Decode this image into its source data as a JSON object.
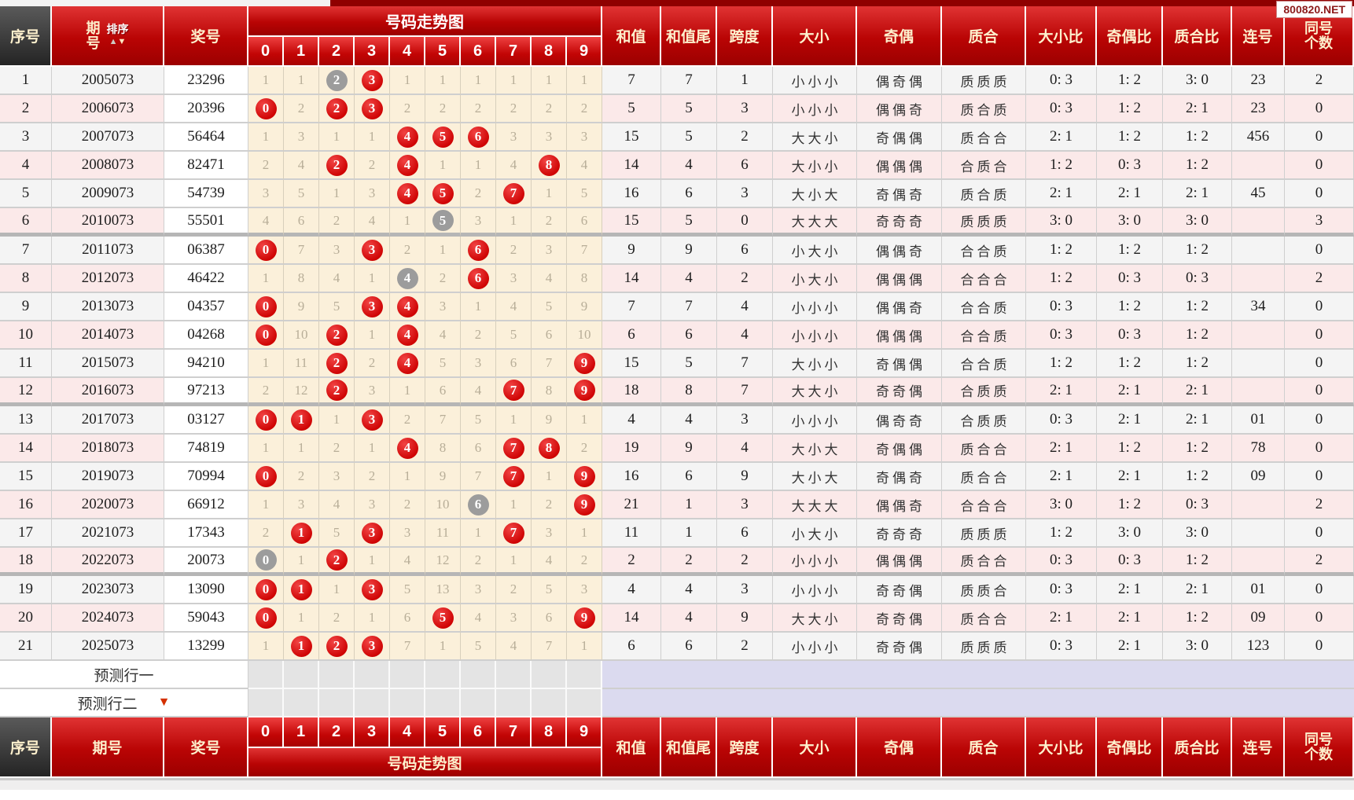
{
  "watermark": "800820.NET",
  "header": {
    "serial": "序号",
    "period": "期号",
    "period_char1": "期",
    "period_char2": "号",
    "sort_label": "排序",
    "sort_up_icon": "▲",
    "sort_down_icon": "▼",
    "prize": "奖号",
    "trend_title": "号码走势图",
    "digits": [
      "0",
      "1",
      "2",
      "3",
      "4",
      "5",
      "6",
      "7",
      "8",
      "9"
    ],
    "cols": [
      "和值",
      "和值尾",
      "跨度",
      "大小",
      "奇偶",
      "质合",
      "大小比",
      "奇偶比",
      "质合比",
      "连号"
    ],
    "same_line1": "同号",
    "same_line2": "个数"
  },
  "colors": {
    "header_red": "#b90404",
    "header_dark": "#2e2e2e",
    "stripe_gray": "#f4f4f4",
    "stripe_pink": "#fbe9e9",
    "trend_bg": "#fbf0da",
    "hit_red": "#cf0404",
    "hit_gray": "#9c9c9c",
    "prediction_bg": "#dbdaef"
  },
  "chart_data": {
    "type": "table",
    "title": "号码走势图",
    "columns": [
      "序号",
      "期号",
      "奖号",
      "0",
      "1",
      "2",
      "3",
      "4",
      "5",
      "6",
      "7",
      "8",
      "9",
      "和值",
      "和值尾",
      "跨度",
      "大小",
      "奇偶",
      "质合",
      "大小比",
      "奇偶比",
      "质合比",
      "连号",
      "同号个数"
    ],
    "legend": {
      "r": "red-circle-hit",
      "g": "gray-circle-repeat",
      "plain": "miss-count"
    }
  },
  "rows": [
    {
      "sn": "1",
      "period": "2005073",
      "prize": "23296",
      "trend": [
        "1",
        "1",
        "g2",
        "r3",
        "1",
        "1",
        "1",
        "1",
        "1",
        "1"
      ],
      "sum": "7",
      "sumTail": "7",
      "span": "1",
      "size": "小小小",
      "parity": "偶奇偶",
      "prime": "质质质",
      "sizeRatio": "0: 3",
      "parityRatio": "1: 2",
      "primeRatio": "3: 0",
      "consec": "23",
      "same": "2"
    },
    {
      "sn": "2",
      "period": "2006073",
      "prize": "20396",
      "trend": [
        "r0",
        "2",
        "r2",
        "r3",
        "2",
        "2",
        "2",
        "2",
        "2",
        "2"
      ],
      "sum": "5",
      "sumTail": "5",
      "span": "3",
      "size": "小小小",
      "parity": "偶偶奇",
      "prime": "质合质",
      "sizeRatio": "0: 3",
      "parityRatio": "1: 2",
      "primeRatio": "2: 1",
      "consec": "23",
      "same": "0"
    },
    {
      "sn": "3",
      "period": "2007073",
      "prize": "56464",
      "trend": [
        "1",
        "3",
        "1",
        "1",
        "r4",
        "r5",
        "r6",
        "3",
        "3",
        "3"
      ],
      "sum": "15",
      "sumTail": "5",
      "span": "2",
      "size": "大大小",
      "parity": "奇偶偶",
      "prime": "质合合",
      "sizeRatio": "2: 1",
      "parityRatio": "1: 2",
      "primeRatio": "1: 2",
      "consec": "456",
      "same": "0"
    },
    {
      "sn": "4",
      "period": "2008073",
      "prize": "82471",
      "trend": [
        "2",
        "4",
        "r2",
        "2",
        "r4",
        "1",
        "1",
        "4",
        "r8",
        "4"
      ],
      "sum": "14",
      "sumTail": "4",
      "span": "6",
      "size": "大小小",
      "parity": "偶偶偶",
      "prime": "合质合",
      "sizeRatio": "1: 2",
      "parityRatio": "0: 3",
      "primeRatio": "1: 2",
      "consec": "",
      "same": "0"
    },
    {
      "sn": "5",
      "period": "2009073",
      "prize": "54739",
      "trend": [
        "3",
        "5",
        "1",
        "3",
        "r4",
        "r5",
        "2",
        "r7",
        "1",
        "5"
      ],
      "sum": "16",
      "sumTail": "6",
      "span": "3",
      "size": "大小大",
      "parity": "奇偶奇",
      "prime": "质合质",
      "sizeRatio": "2: 1",
      "parityRatio": "2: 1",
      "primeRatio": "2: 1",
      "consec": "45",
      "same": "0"
    },
    {
      "sn": "6",
      "period": "2010073",
      "prize": "55501",
      "trend": [
        "4",
        "6",
        "2",
        "4",
        "1",
        "g5",
        "3",
        "1",
        "2",
        "6"
      ],
      "sum": "15",
      "sumTail": "5",
      "span": "0",
      "size": "大大大",
      "parity": "奇奇奇",
      "prime": "质质质",
      "sizeRatio": "3: 0",
      "parityRatio": "3: 0",
      "primeRatio": "3: 0",
      "consec": "",
      "same": "3"
    },
    {
      "sn": "7",
      "period": "2011073",
      "prize": "06387",
      "trend": [
        "r0",
        "7",
        "3",
        "r3",
        "2",
        "1",
        "r6",
        "2",
        "3",
        "7"
      ],
      "sum": "9",
      "sumTail": "9",
      "span": "6",
      "size": "小大小",
      "parity": "偶偶奇",
      "prime": "合合质",
      "sizeRatio": "1: 2",
      "parityRatio": "1: 2",
      "primeRatio": "1: 2",
      "consec": "",
      "same": "0"
    },
    {
      "sn": "8",
      "period": "2012073",
      "prize": "46422",
      "trend": [
        "1",
        "8",
        "4",
        "1",
        "g4",
        "2",
        "r6",
        "3",
        "4",
        "8"
      ],
      "sum": "14",
      "sumTail": "4",
      "span": "2",
      "size": "小大小",
      "parity": "偶偶偶",
      "prime": "合合合",
      "sizeRatio": "1: 2",
      "parityRatio": "0: 3",
      "primeRatio": "0: 3",
      "consec": "",
      "same": "2"
    },
    {
      "sn": "9",
      "period": "2013073",
      "prize": "04357",
      "trend": [
        "r0",
        "9",
        "5",
        "r3",
        "r4",
        "3",
        "1",
        "4",
        "5",
        "9"
      ],
      "sum": "7",
      "sumTail": "7",
      "span": "4",
      "size": "小小小",
      "parity": "偶偶奇",
      "prime": "合合质",
      "sizeRatio": "0: 3",
      "parityRatio": "1: 2",
      "primeRatio": "1: 2",
      "consec": "34",
      "same": "0"
    },
    {
      "sn": "10",
      "period": "2014073",
      "prize": "04268",
      "trend": [
        "r0",
        "10",
        "r2",
        "1",
        "r4",
        "4",
        "2",
        "5",
        "6",
        "10"
      ],
      "sum": "6",
      "sumTail": "6",
      "span": "4",
      "size": "小小小",
      "parity": "偶偶偶",
      "prime": "合合质",
      "sizeRatio": "0: 3",
      "parityRatio": "0: 3",
      "primeRatio": "1: 2",
      "consec": "",
      "same": "0"
    },
    {
      "sn": "11",
      "period": "2015073",
      "prize": "94210",
      "trend": [
        "1",
        "11",
        "r2",
        "2",
        "r4",
        "5",
        "3",
        "6",
        "7",
        "r9"
      ],
      "sum": "15",
      "sumTail": "5",
      "span": "7",
      "size": "大小小",
      "parity": "奇偶偶",
      "prime": "合合质",
      "sizeRatio": "1: 2",
      "parityRatio": "1: 2",
      "primeRatio": "1: 2",
      "consec": "",
      "same": "0"
    },
    {
      "sn": "12",
      "period": "2016073",
      "prize": "97213",
      "trend": [
        "2",
        "12",
        "r2",
        "3",
        "1",
        "6",
        "4",
        "r7",
        "8",
        "r9"
      ],
      "sum": "18",
      "sumTail": "8",
      "span": "7",
      "size": "大大小",
      "parity": "奇奇偶",
      "prime": "合质质",
      "sizeRatio": "2: 1",
      "parityRatio": "2: 1",
      "primeRatio": "2: 1",
      "consec": "",
      "same": "0"
    },
    {
      "sn": "13",
      "period": "2017073",
      "prize": "03127",
      "trend": [
        "r0",
        "r1",
        "1",
        "r3",
        "2",
        "7",
        "5",
        "1",
        "9",
        "1"
      ],
      "sum": "4",
      "sumTail": "4",
      "span": "3",
      "size": "小小小",
      "parity": "偶奇奇",
      "prime": "合质质",
      "sizeRatio": "0: 3",
      "parityRatio": "2: 1",
      "primeRatio": "2: 1",
      "consec": "01",
      "same": "0"
    },
    {
      "sn": "14",
      "period": "2018073",
      "prize": "74819",
      "trend": [
        "1",
        "1",
        "2",
        "1",
        "r4",
        "8",
        "6",
        "r7",
        "r8",
        "2"
      ],
      "sum": "19",
      "sumTail": "9",
      "span": "4",
      "size": "大小大",
      "parity": "奇偶偶",
      "prime": "质合合",
      "sizeRatio": "2: 1",
      "parityRatio": "1: 2",
      "primeRatio": "1: 2",
      "consec": "78",
      "same": "0"
    },
    {
      "sn": "15",
      "period": "2019073",
      "prize": "70994",
      "trend": [
        "r0",
        "2",
        "3",
        "2",
        "1",
        "9",
        "7",
        "r7",
        "1",
        "r9"
      ],
      "sum": "16",
      "sumTail": "6",
      "span": "9",
      "size": "大小大",
      "parity": "奇偶奇",
      "prime": "质合合",
      "sizeRatio": "2: 1",
      "parityRatio": "2: 1",
      "primeRatio": "1: 2",
      "consec": "09",
      "same": "0"
    },
    {
      "sn": "16",
      "period": "2020073",
      "prize": "66912",
      "trend": [
        "1",
        "3",
        "4",
        "3",
        "2",
        "10",
        "g6",
        "1",
        "2",
        "r9"
      ],
      "sum": "21",
      "sumTail": "1",
      "span": "3",
      "size": "大大大",
      "parity": "偶偶奇",
      "prime": "合合合",
      "sizeRatio": "3: 0",
      "parityRatio": "1: 2",
      "primeRatio": "0: 3",
      "consec": "",
      "same": "2"
    },
    {
      "sn": "17",
      "period": "2021073",
      "prize": "17343",
      "trend": [
        "2",
        "r1",
        "5",
        "r3",
        "3",
        "11",
        "1",
        "r7",
        "3",
        "1"
      ],
      "sum": "11",
      "sumTail": "1",
      "span": "6",
      "size": "小大小",
      "parity": "奇奇奇",
      "prime": "质质质",
      "sizeRatio": "1: 2",
      "parityRatio": "3: 0",
      "primeRatio": "3: 0",
      "consec": "",
      "same": "0"
    },
    {
      "sn": "18",
      "period": "2022073",
      "prize": "20073",
      "trend": [
        "g0",
        "1",
        "r2",
        "1",
        "4",
        "12",
        "2",
        "1",
        "4",
        "2"
      ],
      "sum": "2",
      "sumTail": "2",
      "span": "2",
      "size": "小小小",
      "parity": "偶偶偶",
      "prime": "质合合",
      "sizeRatio": "0: 3",
      "parityRatio": "0: 3",
      "primeRatio": "1: 2",
      "consec": "",
      "same": "2"
    },
    {
      "sn": "19",
      "period": "2023073",
      "prize": "13090",
      "trend": [
        "r0",
        "r1",
        "1",
        "r3",
        "5",
        "13",
        "3",
        "2",
        "5",
        "3"
      ],
      "sum": "4",
      "sumTail": "4",
      "span": "3",
      "size": "小小小",
      "parity": "奇奇偶",
      "prime": "质质合",
      "sizeRatio": "0: 3",
      "parityRatio": "2: 1",
      "primeRatio": "2: 1",
      "consec": "01",
      "same": "0"
    },
    {
      "sn": "20",
      "period": "2024073",
      "prize": "59043",
      "trend": [
        "r0",
        "1",
        "2",
        "1",
        "6",
        "r5",
        "4",
        "3",
        "6",
        "r9"
      ],
      "sum": "14",
      "sumTail": "4",
      "span": "9",
      "size": "大大小",
      "parity": "奇奇偶",
      "prime": "质合合",
      "sizeRatio": "2: 1",
      "parityRatio": "2: 1",
      "primeRatio": "1: 2",
      "consec": "09",
      "same": "0"
    },
    {
      "sn": "21",
      "period": "2025073",
      "prize": "13299",
      "trend": [
        "1",
        "r1",
        "r2",
        "r3",
        "7",
        "1",
        "5",
        "4",
        "7",
        "1"
      ],
      "sum": "6",
      "sumTail": "6",
      "span": "2",
      "size": "小小小",
      "parity": "奇奇偶",
      "prime": "质质质",
      "sizeRatio": "0: 3",
      "parityRatio": "2: 1",
      "primeRatio": "3: 0",
      "consec": "123",
      "same": "0"
    }
  ],
  "predictions": [
    {
      "label": "预测行一",
      "arrow": ""
    },
    {
      "label": "预测行二",
      "arrow": "▼"
    }
  ]
}
